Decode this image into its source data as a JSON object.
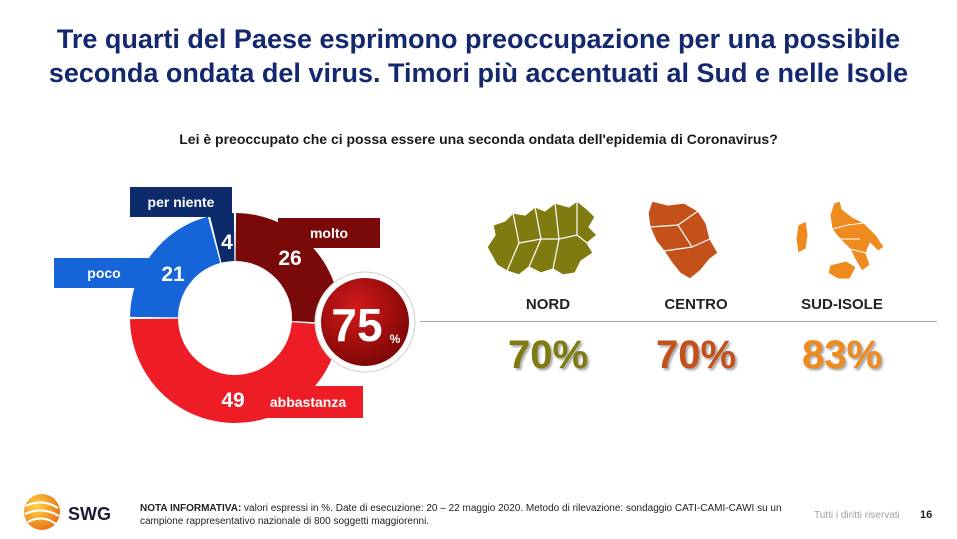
{
  "title_line1": "Tre quarti del Paese esprimono preoccupazione per una possibile",
  "title_line2": "seconda ondata del virus. Timori più accentuati al Sud e nelle Isole",
  "question": "Lei è preoccupato che ci possa essere una seconda ondata dell'epidemia di Coronavirus?",
  "chart_data": [
    {
      "type": "pie",
      "variant": "donut",
      "categories": [
        "molto",
        "abbastanza",
        "poco",
        "per niente"
      ],
      "values": [
        26,
        49,
        21,
        4
      ],
      "colors": [
        "#7a0a0a",
        "#ee1c24",
        "#1565d8",
        "#0d2a6b"
      ],
      "total_label": {
        "value": "75",
        "unit": "%"
      }
    },
    {
      "type": "bar",
      "categories": [
        "NORD",
        "CENTRO",
        "SUD-ISOLE"
      ],
      "values": [
        70,
        70,
        83
      ],
      "value_labels": [
        "70%",
        "70%",
        "83%"
      ],
      "colors": [
        "#7f7b10",
        "#c4501a",
        "#ef8a1e"
      ]
    }
  ],
  "note_label": "NOTA INFORMATIVA:",
  "note_text": " valori espressi in %. Date di esecuzione: 20 – 22 maggio 2020. Metodo di rilevazione: sondaggio CATI-CAMI-CAWI su un campione rappresentativo nazionale di 800 soggetti maggiorenni.",
  "brand": "SWG",
  "rights": "Tutti i diritti riservati",
  "page_number": "16"
}
